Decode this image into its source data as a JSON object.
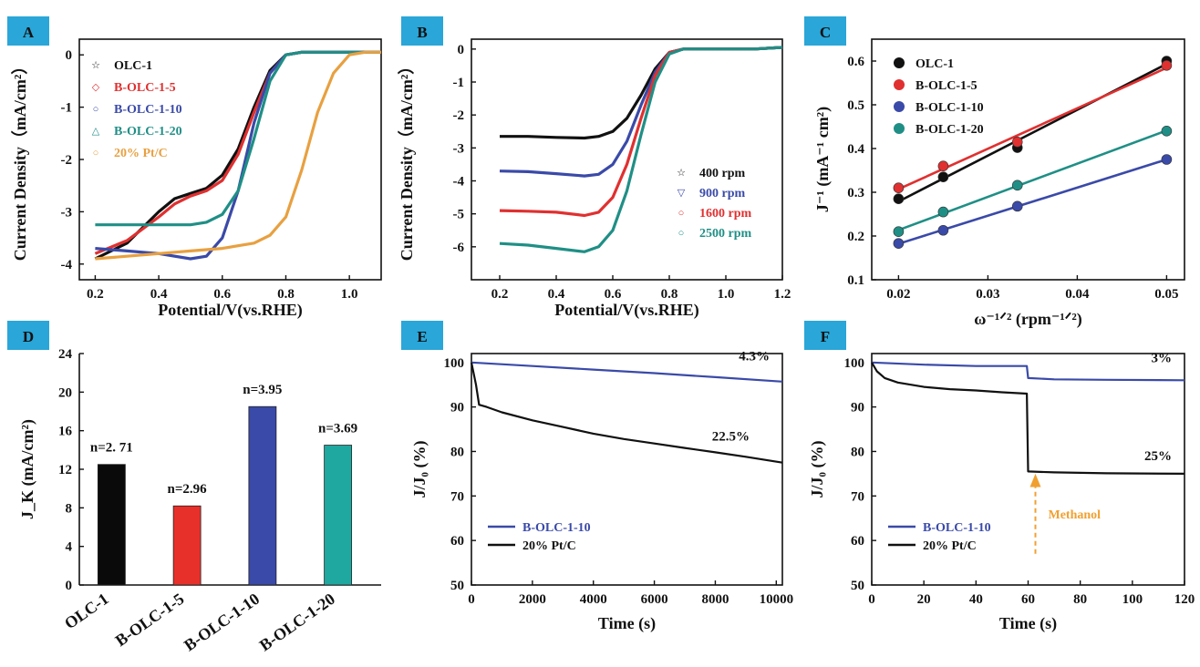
{
  "chart_data": [
    {
      "panel": "A",
      "type": "line",
      "xlabel": "Potential/V(vs.RHE)",
      "ylabel": "Current Density（mA/cm²）",
      "xlim": [
        0.15,
        1.1
      ],
      "ylim": [
        -4.3,
        0.3
      ],
      "xticks": [
        "0.2",
        "0.4",
        "0.6",
        "0.8",
        "1.0"
      ],
      "yticks": [
        "0",
        "-1",
        "-2",
        "-3",
        "-4"
      ],
      "legend_position": "top-left",
      "series": [
        {
          "name": "OLC-1",
          "color": "#111111",
          "marker": "☆",
          "x": [
            0.2,
            0.3,
            0.4,
            0.45,
            0.5,
            0.55,
            0.6,
            0.65,
            0.7,
            0.75,
            0.8,
            0.85,
            0.9,
            1.0,
            1.1
          ],
          "y": [
            -3.9,
            -3.6,
            -3.0,
            -2.75,
            -2.65,
            -2.55,
            -2.3,
            -1.8,
            -1.0,
            -0.3,
            0.0,
            0.05,
            0.05,
            0.05,
            0.05
          ]
        },
        {
          "name": "B-OLC-1-5",
          "color": "#e03030",
          "marker": "◇",
          "x": [
            0.2,
            0.3,
            0.4,
            0.45,
            0.5,
            0.55,
            0.6,
            0.65,
            0.7,
            0.75,
            0.8,
            0.85,
            0.9,
            1.0,
            1.1
          ],
          "y": [
            -3.8,
            -3.55,
            -3.1,
            -2.85,
            -2.7,
            -2.6,
            -2.4,
            -1.9,
            -1.1,
            -0.35,
            0.0,
            0.05,
            0.05,
            0.05,
            0.05
          ]
        },
        {
          "name": "B-OLC-1-10",
          "color": "#3a4aa8",
          "marker": "○",
          "x": [
            0.2,
            0.3,
            0.4,
            0.5,
            0.55,
            0.6,
            0.65,
            0.7,
            0.75,
            0.8,
            0.85,
            0.9,
            1.0,
            1.1
          ],
          "y": [
            -3.7,
            -3.75,
            -3.8,
            -3.9,
            -3.85,
            -3.5,
            -2.6,
            -1.3,
            -0.35,
            0.0,
            0.05,
            0.05,
            0.05,
            0.05
          ]
        },
        {
          "name": "B-OLC-1-20",
          "color": "#1f8f86",
          "marker": "△",
          "x": [
            0.2,
            0.3,
            0.4,
            0.5,
            0.55,
            0.6,
            0.65,
            0.7,
            0.75,
            0.8,
            0.85,
            0.9,
            1.0,
            1.1
          ],
          "y": [
            -3.25,
            -3.25,
            -3.25,
            -3.25,
            -3.2,
            -3.05,
            -2.6,
            -1.6,
            -0.5,
            0.0,
            0.05,
            0.05,
            0.05,
            0.05
          ]
        },
        {
          "name": "20% Pt/C",
          "color": "#e8a040",
          "marker": "○",
          "x": [
            0.2,
            0.3,
            0.4,
            0.5,
            0.6,
            0.7,
            0.75,
            0.8,
            0.85,
            0.9,
            0.95,
            1.0,
            1.05,
            1.1
          ],
          "y": [
            -3.9,
            -3.85,
            -3.8,
            -3.75,
            -3.7,
            -3.6,
            -3.45,
            -3.1,
            -2.2,
            -1.1,
            -0.35,
            0.0,
            0.05,
            0.05
          ]
        }
      ]
    },
    {
      "panel": "B",
      "type": "line",
      "xlabel": "Potential/V(vs.RHE)",
      "ylabel": "Current Density（mA/cm²）",
      "xlim": [
        0.1,
        1.2
      ],
      "ylim": [
        -7,
        0.3
      ],
      "xticks": [
        "0.2",
        "0.4",
        "0.6",
        "0.8",
        "1.0",
        "1.2"
      ],
      "yticks": [
        "0",
        "-1",
        "-2",
        "-3",
        "-4",
        "-5",
        "-6"
      ],
      "legend_position": "center-right",
      "series": [
        {
          "name": "400 rpm",
          "color": "#111111",
          "marker": "☆",
          "x": [
            0.2,
            0.3,
            0.4,
            0.5,
            0.55,
            0.6,
            0.65,
            0.7,
            0.75,
            0.8,
            0.85,
            0.9,
            1.0,
            1.1,
            1.2
          ],
          "y": [
            -2.65,
            -2.65,
            -2.68,
            -2.7,
            -2.65,
            -2.5,
            -2.1,
            -1.4,
            -0.6,
            -0.1,
            0.0,
            0.0,
            0.0,
            0.0,
            0.05
          ]
        },
        {
          "name": "900 rpm",
          "color": "#3a4aa8",
          "marker": "▽",
          "x": [
            0.2,
            0.3,
            0.4,
            0.5,
            0.55,
            0.6,
            0.65,
            0.7,
            0.75,
            0.8,
            0.85,
            0.9,
            1.0,
            1.1,
            1.2
          ],
          "y": [
            -3.7,
            -3.72,
            -3.78,
            -3.85,
            -3.8,
            -3.5,
            -2.8,
            -1.7,
            -0.7,
            -0.1,
            0.0,
            0.0,
            0.0,
            0.0,
            0.05
          ]
        },
        {
          "name": "1600 rpm",
          "color": "#e03030",
          "marker": "○",
          "x": [
            0.2,
            0.3,
            0.4,
            0.5,
            0.55,
            0.6,
            0.65,
            0.7,
            0.75,
            0.8,
            0.85,
            0.9,
            1.0,
            1.1,
            1.2
          ],
          "y": [
            -4.9,
            -4.92,
            -4.95,
            -5.05,
            -4.95,
            -4.5,
            -3.5,
            -2.1,
            -0.8,
            -0.1,
            0.0,
            0.0,
            0.0,
            0.0,
            0.05
          ]
        },
        {
          "name": "2500 rpm",
          "color": "#1f8f86",
          "marker": "○",
          "x": [
            0.2,
            0.3,
            0.4,
            0.5,
            0.55,
            0.6,
            0.65,
            0.7,
            0.75,
            0.8,
            0.85,
            0.9,
            1.0,
            1.1,
            1.2
          ],
          "y": [
            -5.9,
            -5.95,
            -6.05,
            -6.15,
            -6.0,
            -5.5,
            -4.3,
            -2.6,
            -1.0,
            -0.15,
            0.0,
            0.0,
            0.0,
            0.0,
            0.05
          ]
        }
      ]
    },
    {
      "panel": "C",
      "type": "scatter",
      "xlabel": "ω⁻¹ᐟ² (rpm⁻¹ᐟ²)",
      "ylabel": "J⁻¹ (mA⁻¹ cm²)",
      "xlim": [
        0.017,
        0.052
      ],
      "ylim": [
        0.1,
        0.65
      ],
      "xticks": [
        "0.02",
        "0.03",
        "0.04",
        "0.05"
      ],
      "yticks": [
        "0.1",
        "0.2",
        "0.3",
        "0.4",
        "0.5",
        "0.6"
      ],
      "legend_position": "top-left",
      "x": [
        0.02,
        0.025,
        0.0333,
        0.05
      ],
      "series": [
        {
          "name": "OLC-1",
          "color": "#111111",
          "values": [
            0.285,
            0.335,
            0.402,
            0.6
          ]
        },
        {
          "name": "B-OLC-1-5",
          "color": "#e03030",
          "values": [
            0.31,
            0.36,
            0.415,
            0.59
          ]
        },
        {
          "name": "B-OLC-1-10",
          "color": "#3a4aa8",
          "values": [
            0.183,
            0.213,
            0.268,
            0.375
          ]
        },
        {
          "name": "B-OLC-1-20",
          "color": "#1f8f86",
          "values": [
            0.21,
            0.255,
            0.316,
            0.44
          ]
        }
      ]
    },
    {
      "panel": "D",
      "type": "bar",
      "ylabel": "J_K (mA/cm²)",
      "ylim": [
        0,
        24
      ],
      "yticks": [
        "0",
        "4",
        "8",
        "12",
        "16",
        "20",
        "24"
      ],
      "categories": [
        "OLC-1",
        "B-OLC-1-5",
        "B-OLC-1-10",
        "B-OLC-1-20"
      ],
      "values": [
        12.5,
        8.2,
        18.5,
        14.5
      ],
      "colors": [
        "#0a0a0a",
        "#e8302a",
        "#3a4aa8",
        "#1fa89f"
      ],
      "annotations": [
        "n=2. 71",
        "n=2.96",
        "n=3.95",
        "n=3.69"
      ]
    },
    {
      "panel": "E",
      "type": "line",
      "xlabel": "Time (s)",
      "ylabel": "J/J₀ (%)",
      "xlim": [
        0,
        10200
      ],
      "ylim": [
        50,
        102
      ],
      "xticks": [
        "0",
        "2000",
        "4000",
        "6000",
        "8000",
        "10000"
      ],
      "yticks": [
        "50",
        "60",
        "70",
        "80",
        "90",
        "100"
      ],
      "legend_position": "bottom-left",
      "annotations": [
        "4.3%",
        "22.5%"
      ],
      "series": [
        {
          "name": "B-OLC-1-10",
          "color": "#3a4aa8",
          "x": [
            0,
            2000,
            4000,
            6000,
            8000,
            10200
          ],
          "y": [
            100,
            99.2,
            98.4,
            97.6,
            96.7,
            95.7
          ]
        },
        {
          "name": "20% Pt/C",
          "color": "#111111",
          "x": [
            0,
            150,
            250,
            500,
            1000,
            2000,
            3000,
            4000,
            5000,
            6000,
            7000,
            8000,
            9000,
            10200
          ],
          "y": [
            100,
            95,
            90.5,
            90,
            88.8,
            87,
            85.5,
            84,
            82.8,
            81.8,
            80.8,
            79.8,
            78.8,
            77.5
          ]
        }
      ]
    },
    {
      "panel": "F",
      "type": "line",
      "xlabel": "Time (s)",
      "ylabel": "J/J₀ (%)",
      "xlim": [
        0,
        120
      ],
      "ylim": [
        50,
        102
      ],
      "xticks": [
        "0",
        "20",
        "40",
        "60",
        "80",
        "100",
        "120"
      ],
      "yticks": [
        "50",
        "60",
        "70",
        "80",
        "90",
        "100"
      ],
      "legend_position": "bottom-left",
      "annotations": [
        "3%",
        "25%",
        "Methanol"
      ],
      "series": [
        {
          "name": "B-OLC-1-10",
          "color": "#3a4aa8",
          "x": [
            0,
            20,
            40,
            59.5,
            60,
            70,
            90,
            120
          ],
          "y": [
            100,
            99.5,
            99.2,
            99.2,
            96.5,
            96.2,
            96.1,
            96.0
          ]
        },
        {
          "name": "20% Pt/C",
          "color": "#111111",
          "x": [
            0,
            2,
            5,
            10,
            20,
            30,
            40,
            50,
            59.5,
            60,
            70,
            90,
            120
          ],
          "y": [
            100,
            98,
            96.5,
            95.5,
            94.5,
            94,
            93.7,
            93.3,
            93.0,
            75.5,
            75.3,
            75.1,
            75.0
          ]
        }
      ]
    }
  ]
}
